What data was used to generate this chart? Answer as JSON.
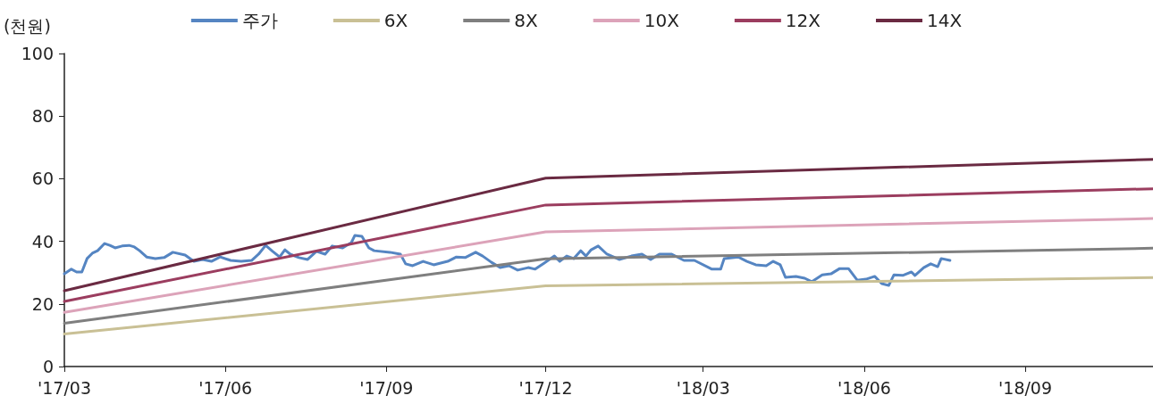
{
  "chart_data": {
    "type": "line",
    "ylabel": "(천원)",
    "legend": "top",
    "grid": false,
    "marker": "none",
    "line_style": "solid",
    "xlim": [
      "2017-03-01",
      "2018-11-13"
    ],
    "xticks": [
      {
        "value": "2017-03-01",
        "label": "'17/03"
      },
      {
        "value": "2017-06-01",
        "label": "'17/06"
      },
      {
        "value": "2017-09-01",
        "label": "'17/09"
      },
      {
        "value": "2017-12-01",
        "label": "'17/12"
      },
      {
        "value": "2018-03-01",
        "label": "'18/03"
      },
      {
        "value": "2018-06-01",
        "label": "'18/06"
      },
      {
        "value": "2018-09-01",
        "label": "'18/09"
      }
    ],
    "ylim": [
      0,
      100
    ],
    "yticks": [
      0,
      20,
      40,
      60,
      80,
      100
    ],
    "series": [
      {
        "name": "주가",
        "color": "#5585c2",
        "x": [
          "2017-03-01",
          "2017-03-05",
          "2017-03-08",
          "2017-03-11",
          "2017-03-14",
          "2017-03-17",
          "2017-03-20",
          "2017-03-24",
          "2017-03-27",
          "2017-03-30",
          "2017-04-03",
          "2017-04-07",
          "2017-04-10",
          "2017-04-13",
          "2017-04-17",
          "2017-04-22",
          "2017-04-27",
          "2017-05-02",
          "2017-05-09",
          "2017-05-14",
          "2017-05-19",
          "2017-05-24",
          "2017-05-29",
          "2017-06-04",
          "2017-06-10",
          "2017-06-16",
          "2017-06-20",
          "2017-06-24",
          "2017-06-28",
          "2017-07-02",
          "2017-07-05",
          "2017-07-08",
          "2017-07-13",
          "2017-07-18",
          "2017-07-23",
          "2017-07-28",
          "2017-08-01",
          "2017-08-07",
          "2017-08-12",
          "2017-08-14",
          "2017-08-18",
          "2017-08-22",
          "2017-08-25",
          "2017-09-03",
          "2017-09-09",
          "2017-09-12",
          "2017-09-16",
          "2017-09-22",
          "2017-09-28",
          "2017-10-06",
          "2017-10-11",
          "2017-10-16",
          "2017-10-22",
          "2017-10-26",
          "2017-10-31",
          "2017-11-05",
          "2017-11-10",
          "2017-11-15",
          "2017-11-21",
          "2017-11-25",
          "2017-11-30",
          "2017-12-06",
          "2017-12-09",
          "2017-12-13",
          "2017-12-17",
          "2017-12-21",
          "2017-12-24",
          "2017-12-27",
          "2017-12-31",
          "2018-01-05",
          "2018-01-12",
          "2018-01-19",
          "2018-01-25",
          "2018-01-30",
          "2018-02-04",
          "2018-02-11",
          "2018-02-18",
          "2018-02-24",
          "2018-03-06",
          "2018-03-11",
          "2018-03-13",
          "2018-03-21",
          "2018-03-26",
          "2018-03-31",
          "2018-04-06",
          "2018-04-10",
          "2018-04-14",
          "2018-04-17",
          "2018-04-23",
          "2018-04-28",
          "2018-05-02",
          "2018-05-08",
          "2018-05-13",
          "2018-05-18",
          "2018-05-23",
          "2018-05-28",
          "2018-06-02",
          "2018-06-07",
          "2018-06-11",
          "2018-06-15",
          "2018-06-18",
          "2018-06-23",
          "2018-06-28",
          "2018-06-30",
          "2018-07-05",
          "2018-07-09",
          "2018-07-13",
          "2018-07-15",
          "2018-07-20"
        ],
        "values": [
          29.6,
          31.1,
          30.2,
          30.2,
          34.5,
          36.2,
          37.0,
          39.3,
          38.7,
          37.9,
          38.5,
          38.7,
          38.2,
          37.0,
          35.0,
          34.5,
          34.8,
          36.5,
          35.6,
          33.6,
          34.2,
          33.6,
          35.0,
          33.9,
          33.6,
          33.9,
          35.9,
          38.7,
          36.8,
          35.0,
          37.3,
          35.9,
          34.8,
          34.2,
          36.8,
          35.9,
          38.5,
          37.9,
          39.6,
          41.9,
          41.6,
          37.9,
          37.0,
          36.5,
          35.9,
          32.8,
          32.2,
          33.6,
          32.5,
          33.6,
          35.0,
          34.8,
          36.5,
          35.3,
          33.3,
          31.6,
          32.2,
          30.8,
          31.6,
          31.1,
          33.0,
          35.3,
          33.6,
          35.3,
          34.5,
          37.0,
          35.3,
          37.3,
          38.5,
          35.9,
          34.2,
          35.3,
          35.9,
          34.2,
          35.9,
          35.9,
          33.9,
          33.9,
          31.1,
          31.1,
          34.5,
          35.0,
          33.6,
          32.5,
          32.2,
          33.6,
          32.5,
          28.5,
          28.8,
          28.2,
          27.1,
          29.3,
          29.6,
          31.3,
          31.3,
          27.6,
          27.9,
          28.8,
          26.5,
          25.9,
          29.3,
          29.1,
          30.2,
          29.1,
          31.6,
          32.8,
          31.9,
          34.5,
          33.9
        ]
      },
      {
        "name": "6X",
        "color": "#c9c095",
        "x": [
          "2017-03-01",
          "2017-12-01",
          "2018-11-13"
        ],
        "values": [
          10.4,
          25.8,
          28.4
        ]
      },
      {
        "name": "8X",
        "color": "#7f7f7f",
        "x": [
          "2017-03-01",
          "2017-12-01",
          "2018-11-13"
        ],
        "values": [
          13.8,
          34.4,
          37.8
        ]
      },
      {
        "name": "10X",
        "color": "#dca3b9",
        "x": [
          "2017-03-01",
          "2017-12-01",
          "2018-11-13"
        ],
        "values": [
          17.3,
          43.0,
          47.3
        ]
      },
      {
        "name": "12X",
        "color": "#9b3d5f",
        "x": [
          "2017-03-01",
          "2017-12-01",
          "2018-11-13"
        ],
        "values": [
          20.8,
          51.6,
          56.8
        ]
      },
      {
        "name": "14X",
        "color": "#6a2a42",
        "x": [
          "2017-03-01",
          "2017-12-01",
          "2018-11-13"
        ],
        "values": [
          24.2,
          60.2,
          66.2
        ]
      }
    ]
  }
}
